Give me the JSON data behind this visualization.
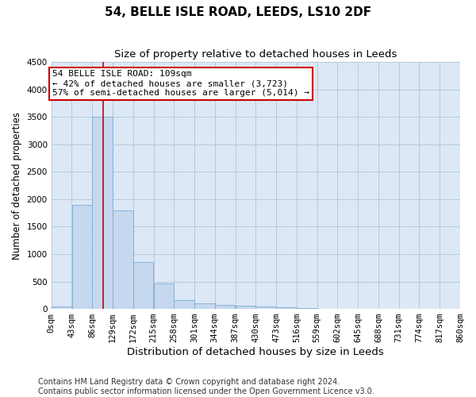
{
  "title": "54, BELLE ISLE ROAD, LEEDS, LS10 2DF",
  "subtitle": "Size of property relative to detached houses in Leeds",
  "xlabel": "Distribution of detached houses by size in Leeds",
  "ylabel": "Number of detached properties",
  "bar_color": "#c5d8ee",
  "bar_edge_color": "#7aadd4",
  "background_color": "#ffffff",
  "plot_bg_color": "#dce8f5",
  "grid_color": "#b0c4d8",
  "vline_x": 109,
  "vline_color": "#cc0000",
  "annotation_line1": "54 BELLE ISLE ROAD: 109sqm",
  "annotation_line2": "← 42% of detached houses are smaller (3,723)",
  "annotation_line3": "57% of semi-detached houses are larger (5,014) →",
  "annotation_box_color": "#cc0000",
  "ylim": [
    0,
    4500
  ],
  "yticks": [
    0,
    500,
    1000,
    1500,
    2000,
    2500,
    3000,
    3500,
    4000,
    4500
  ],
  "bin_edges": [
    0,
    43,
    86,
    129,
    172,
    215,
    258,
    301,
    344,
    387,
    430,
    473,
    516,
    559,
    602,
    645,
    688,
    731,
    774,
    817,
    860
  ],
  "bar_heights": [
    50,
    1900,
    3500,
    1800,
    850,
    460,
    160,
    100,
    75,
    55,
    40,
    30,
    15,
    8,
    5,
    3,
    2,
    1,
    1,
    0
  ],
  "footer_text": "Contains HM Land Registry data © Crown copyright and database right 2024.\nContains public sector information licensed under the Open Government Licence v3.0.",
  "title_fontsize": 11,
  "subtitle_fontsize": 9.5,
  "xlabel_fontsize": 9.5,
  "ylabel_fontsize": 8.5,
  "tick_fontsize": 7.5,
  "footer_fontsize": 7,
  "annotation_fontsize": 8
}
